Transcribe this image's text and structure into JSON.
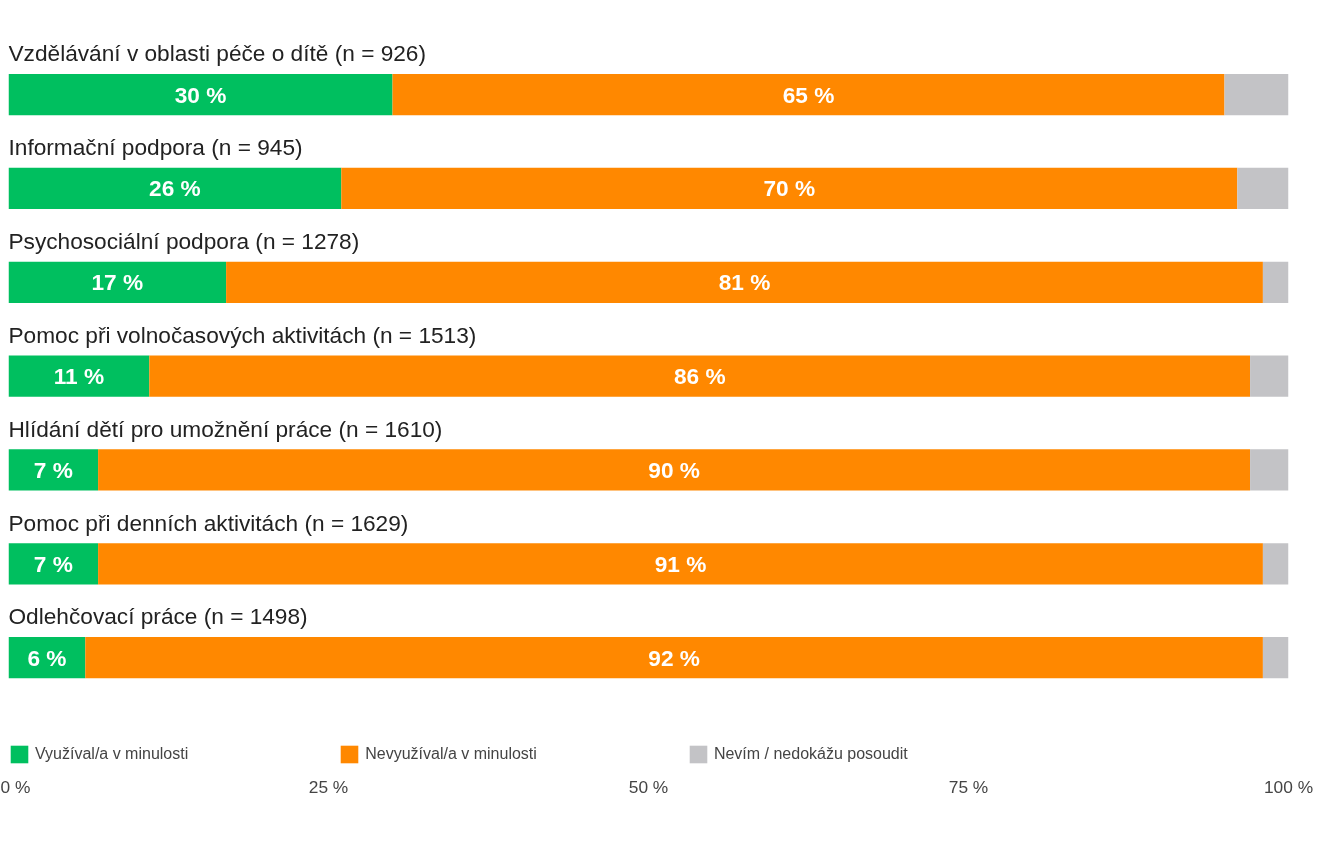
{
  "chart_data": {
    "type": "bar",
    "orientation": "horizontal",
    "stacked": true,
    "categories": [
      "Vzdělávání v oblasti péče o dítě (n = 926)",
      "Informační podpora (n = 945)",
      "Psychosociální podpora (n = 1278)",
      "Pomoc při volnočasových aktivitách (n = 1513)",
      "Hlídání dětí pro umožnění práce (n = 1610)",
      "Pomoc při denních aktivitách (n = 1629)",
      "Odlehčovací práce (n = 1498)"
    ],
    "series": [
      {
        "name": "Využíval/a v minulosti",
        "color": "#00bf5f",
        "values": [
          30,
          26,
          17,
          11,
          7,
          7,
          6
        ],
        "value_labels": [
          "30 %",
          "26 %",
          "17 %",
          "11 %",
          "7 %",
          "7 %",
          "6 %"
        ]
      },
      {
        "name": "Nevyužíval/a v minulosti",
        "color": "#ff8800",
        "values": [
          65,
          70,
          81,
          86,
          90,
          91,
          92
        ],
        "value_labels": [
          "65 %",
          "70 %",
          "81 %",
          "86 %",
          "90 %",
          "91 %",
          "92 %"
        ]
      },
      {
        "name": "Nevím / nedokážu posoudit",
        "color": "#c3c3c6",
        "values": [
          5,
          4,
          2,
          3,
          3,
          2,
          2
        ]
      }
    ],
    "xlim": [
      0,
      100
    ],
    "xticks": [
      {
        "value": 0,
        "label": "0 %"
      },
      {
        "value": 25,
        "label": "25 %"
      },
      {
        "value": 50,
        "label": "50 %"
      },
      {
        "value": 75,
        "label": "75 %"
      },
      {
        "value": 100,
        "label": "100 %"
      }
    ],
    "grid": false,
    "legend": "bottom"
  }
}
